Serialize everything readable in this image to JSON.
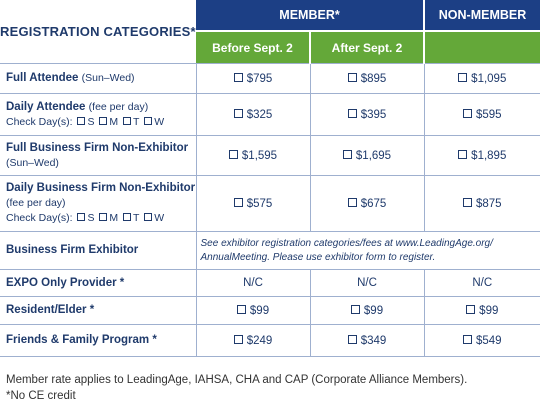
{
  "header": {
    "categories": "REGISTRATION CATEGORIES*",
    "member": "MEMBER*",
    "non_member": "NON-MEMBER",
    "before": "Before Sept. 2",
    "after": "After Sept. 2"
  },
  "day_labels": {
    "check": "Check Day(s):",
    "s": "S",
    "m": "M",
    "t": "T",
    "w": "W"
  },
  "rows": [
    {
      "name": "Full Attendee",
      "sub": "(Sun–Wed)",
      "before": "$795",
      "after": "$895",
      "non": "$1,095"
    },
    {
      "name": "Daily Attendee",
      "sub": "(fee per day)",
      "before": "$325",
      "after": "$395",
      "non": "$595"
    },
    {
      "name": "Full Business Firm Non-Exhibitor",
      "sub": "(Sun–Wed)",
      "before": "$1,595",
      "after": "$1,695",
      "non": "$1,895"
    },
    {
      "name": "Daily Business Firm Non-Exhibitor",
      "sub": "(fee per day)",
      "before": "$575",
      "after": "$675",
      "non": "$875"
    },
    {
      "name": "Business Firm Exhibitor",
      "note": "See exhibitor registration categories/fees at www.LeadingAge.org/ AnnualMeeting. Please use exhibitor form to register."
    },
    {
      "name": "EXPO Only Provider *",
      "before": "N/C",
      "after": "N/C",
      "non": "N/C"
    },
    {
      "name": "Resident/Elder *",
      "before": "$99",
      "after": "$99",
      "non": "$99"
    },
    {
      "name": "Friends & Family Program *",
      "before": "$249",
      "after": "$349",
      "non": "$549"
    }
  ],
  "footnotes": {
    "member_rate": "Member rate applies to LeadingAge, IAHSA, CHA and CAP (Corporate Alliance Members).",
    "no_ce": "*No CE credit"
  }
}
